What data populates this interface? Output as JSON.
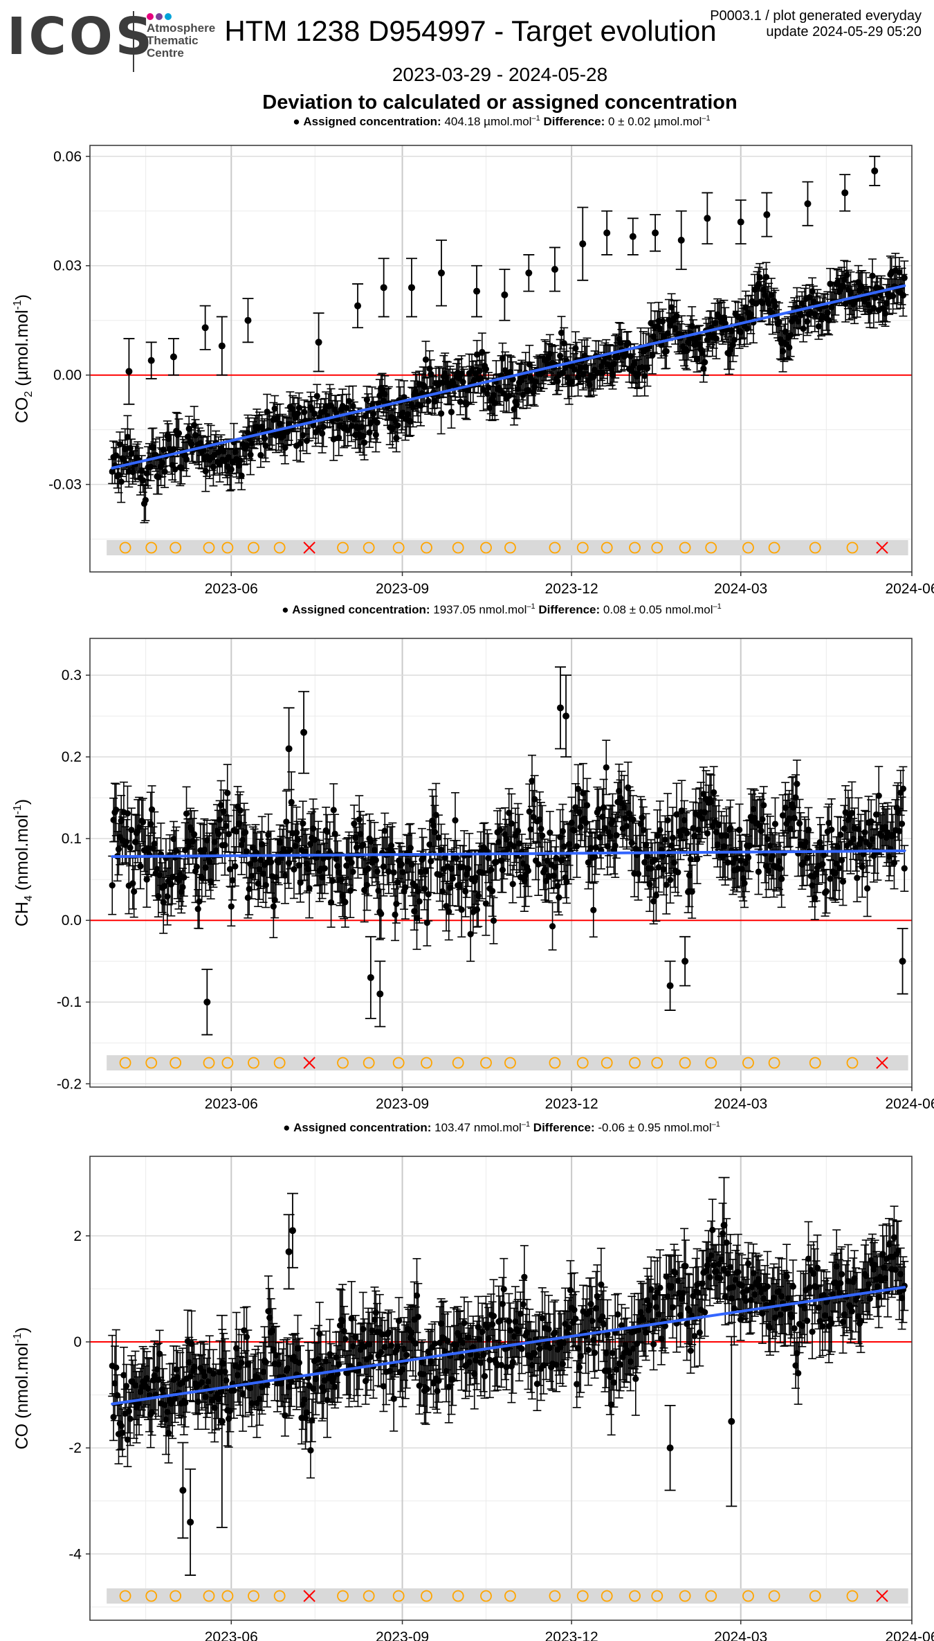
{
  "logo": {
    "word": "ICOS",
    "line1": "Atmosphere",
    "line2": "Thematic",
    "line3": "Centre",
    "dot_colors": [
      "#e6007e",
      "#7b3f98",
      "#00a3d9"
    ]
  },
  "header": {
    "title": "HTM 1238 D954997 - Target evolution",
    "note_line1": "P0003.1 / plot generated everyday",
    "note_line2": "update  2024-05-29 05:20",
    "date_range": "2023-03-29 - 2024-05-28",
    "subtitle": "Deviation to calculated or assigned concentration"
  },
  "colors": {
    "points": "#000000",
    "trend": "#3366ff",
    "zero_line": "#ff0000",
    "flag_band": "#d9d9d9",
    "flag_ok": "#ffa500",
    "flag_bad": "#ff0000"
  },
  "chart_data": [
    {
      "type": "scatter",
      "gas": "CO2",
      "ylabel_main": "CO",
      "ylabel_sub": "2",
      "ylabel_unit": " (µmol.mol",
      "ylabel_sup": "-1",
      "ylabel_close": ")",
      "legend": {
        "label": "Assigned concentration:",
        "value": "404.18 µmol.mol",
        "value_sup": "–1",
        "diff_label": "Difference:",
        "diff_value": "0 ± 0.02 µmol.mol",
        "diff_sup": "–1"
      },
      "ylim": [
        -0.054,
        0.063
      ],
      "yticks": [
        -0.03,
        0.0,
        0.03,
        0.06
      ],
      "ytick_labels": [
        "-0.03",
        "0.00",
        "0.03",
        "0.06"
      ],
      "trend": {
        "start": -0.0255,
        "end": 0.0245
      },
      "noise_sd": 0.0055,
      "error_bar": 0.0045,
      "outliers": [
        [
          "2023-04-07",
          0.001,
          0.009
        ],
        [
          "2023-04-19",
          0.004,
          0.005
        ],
        [
          "2023-05-01",
          0.005,
          0.005
        ],
        [
          "2023-05-18",
          0.013,
          0.006
        ],
        [
          "2023-05-27",
          0.008,
          0.008
        ],
        [
          "2023-06-10",
          0.015,
          0.006
        ],
        [
          "2023-07-18",
          0.009,
          0.008
        ],
        [
          "2023-08-08",
          0.019,
          0.006
        ],
        [
          "2023-08-22",
          0.024,
          0.008
        ],
        [
          "2023-09-06",
          0.024,
          0.008
        ],
        [
          "2023-09-22",
          0.028,
          0.009
        ],
        [
          "2023-10-11",
          0.023,
          0.007
        ],
        [
          "2023-10-26",
          0.022,
          0.007
        ],
        [
          "2023-11-08",
          0.028,
          0.005
        ],
        [
          "2023-11-22",
          0.029,
          0.006
        ],
        [
          "2023-12-07",
          0.036,
          0.01
        ],
        [
          "2023-12-20",
          0.039,
          0.006
        ],
        [
          "2024-01-03",
          0.038,
          0.005
        ],
        [
          "2024-01-15",
          0.039,
          0.005
        ],
        [
          "2024-01-29",
          0.037,
          0.008
        ],
        [
          "2024-02-12",
          0.043,
          0.007
        ],
        [
          "2024-03-01",
          0.042,
          0.006
        ],
        [
          "2024-03-15",
          0.044,
          0.006
        ],
        [
          "2024-04-06",
          0.047,
          0.006
        ],
        [
          "2024-04-26",
          0.05,
          0.005
        ],
        [
          "2024-05-12",
          0.056,
          0.004
        ]
      ],
      "flags": [
        [
          "2023-04-05",
          "ok"
        ],
        [
          "2023-04-19",
          "ok"
        ],
        [
          "2023-05-02",
          "ok"
        ],
        [
          "2023-05-20",
          "ok"
        ],
        [
          "2023-05-30",
          "ok"
        ],
        [
          "2023-06-13",
          "ok"
        ],
        [
          "2023-06-27",
          "ok"
        ],
        [
          "2023-07-13",
          "bad"
        ],
        [
          "2023-07-31",
          "ok"
        ],
        [
          "2023-08-14",
          "ok"
        ],
        [
          "2023-08-30",
          "ok"
        ],
        [
          "2023-09-14",
          "ok"
        ],
        [
          "2023-10-01",
          "ok"
        ],
        [
          "2023-10-16",
          "ok"
        ],
        [
          "2023-10-29",
          "ok"
        ],
        [
          "2023-11-22",
          "ok"
        ],
        [
          "2023-12-07",
          "ok"
        ],
        [
          "2023-12-20",
          "ok"
        ],
        [
          "2024-01-04",
          "ok"
        ],
        [
          "2024-01-16",
          "ok"
        ],
        [
          "2024-01-31",
          "ok"
        ],
        [
          "2024-02-14",
          "ok"
        ],
        [
          "2024-03-05",
          "ok"
        ],
        [
          "2024-03-19",
          "ok"
        ],
        [
          "2024-04-10",
          "ok"
        ],
        [
          "2024-04-30",
          "ok"
        ],
        [
          "2024-05-16",
          "bad"
        ]
      ]
    },
    {
      "type": "scatter",
      "gas": "CH4",
      "ylabel_main": "CH",
      "ylabel_sub": "4",
      "ylabel_unit": " (nmol.mol",
      "ylabel_sup": "-1",
      "ylabel_close": ")",
      "legend": {
        "label": "Assigned concentration:",
        "value": "1937.05 nmol.mol",
        "value_sup": "–1",
        "diff_label": "Difference:",
        "diff_value": "0.08 ± 0.05 nmol.mol",
        "diff_sup": "–1"
      },
      "ylim": [
        -0.204,
        0.345
      ],
      "yticks": [
        -0.2,
        -0.1,
        0.0,
        0.1,
        0.2,
        0.3
      ],
      "ytick_labels": [
        "-0.2",
        "-0.1",
        "0.0",
        "0.1",
        "0.2",
        "0.3"
      ],
      "trend": {
        "start": 0.078,
        "end": 0.085
      },
      "noise_sd": 0.045,
      "error_bar": 0.03,
      "outliers": [
        [
          "2023-07-10",
          0.23,
          0.05
        ],
        [
          "2023-07-02",
          0.21,
          0.05
        ],
        [
          "2023-08-20",
          -0.09,
          0.04
        ],
        [
          "2023-08-15",
          -0.07,
          0.05
        ],
        [
          "2023-11-25",
          0.26,
          0.05
        ],
        [
          "2023-11-28",
          0.25,
          0.05
        ],
        [
          "2024-01-23",
          -0.08,
          0.03
        ],
        [
          "2024-01-31",
          -0.05,
          0.03
        ],
        [
          "2023-05-19",
          -0.1,
          0.04
        ],
        [
          "2024-05-27",
          -0.05,
          0.04
        ]
      ],
      "flags": [
        [
          "2023-04-05",
          "ok"
        ],
        [
          "2023-04-19",
          "ok"
        ],
        [
          "2023-05-02",
          "ok"
        ],
        [
          "2023-05-20",
          "ok"
        ],
        [
          "2023-05-30",
          "ok"
        ],
        [
          "2023-06-13",
          "ok"
        ],
        [
          "2023-06-27",
          "ok"
        ],
        [
          "2023-07-13",
          "bad"
        ],
        [
          "2023-07-31",
          "ok"
        ],
        [
          "2023-08-14",
          "ok"
        ],
        [
          "2023-08-30",
          "ok"
        ],
        [
          "2023-09-14",
          "ok"
        ],
        [
          "2023-10-01",
          "ok"
        ],
        [
          "2023-10-16",
          "ok"
        ],
        [
          "2023-10-29",
          "ok"
        ],
        [
          "2023-11-22",
          "ok"
        ],
        [
          "2023-12-07",
          "ok"
        ],
        [
          "2023-12-20",
          "ok"
        ],
        [
          "2024-01-04",
          "ok"
        ],
        [
          "2024-01-16",
          "ok"
        ],
        [
          "2024-01-31",
          "ok"
        ],
        [
          "2024-02-14",
          "ok"
        ],
        [
          "2024-03-05",
          "ok"
        ],
        [
          "2024-03-19",
          "ok"
        ],
        [
          "2024-04-10",
          "ok"
        ],
        [
          "2024-04-30",
          "ok"
        ],
        [
          "2024-05-16",
          "bad"
        ]
      ]
    },
    {
      "type": "scatter",
      "gas": "CO",
      "ylabel_main": "CO",
      "ylabel_sub": "",
      "ylabel_unit": " (nmol.mol",
      "ylabel_sup": "-1",
      "ylabel_close": ")",
      "legend": {
        "label": "Assigned concentration:",
        "value": "103.47 nmol.mol",
        "value_sup": "–1",
        "diff_label": "Difference:",
        "diff_value": "-0.06 ± 0.95 nmol.mol",
        "diff_sup": "–1"
      },
      "ylim": [
        -5.25,
        3.5
      ],
      "yticks": [
        -4,
        -2,
        0,
        2
      ],
      "ytick_labels": [
        "-4",
        "-2",
        "0",
        "2"
      ],
      "trend": {
        "start": -1.17,
        "end": 1.03
      },
      "noise_sd": 0.62,
      "error_bar": 0.55,
      "outliers": [
        [
          "2023-07-04",
          2.1,
          0.7
        ],
        [
          "2023-07-02",
          1.7,
          0.7
        ],
        [
          "2023-05-10",
          -3.4,
          1.0
        ],
        [
          "2023-05-06",
          -2.8,
          0.9
        ],
        [
          "2024-02-21",
          2.2,
          0.9
        ],
        [
          "2024-01-23",
          -2.0,
          0.8
        ],
        [
          "2023-05-27",
          -1.5,
          2.0
        ],
        [
          "2024-02-25",
          -1.5,
          1.6
        ]
      ],
      "flags": [
        [
          "2023-04-05",
          "ok"
        ],
        [
          "2023-04-19",
          "ok"
        ],
        [
          "2023-05-02",
          "ok"
        ],
        [
          "2023-05-20",
          "ok"
        ],
        [
          "2023-05-30",
          "ok"
        ],
        [
          "2023-06-13",
          "ok"
        ],
        [
          "2023-06-27",
          "ok"
        ],
        [
          "2023-07-13",
          "bad"
        ],
        [
          "2023-07-31",
          "ok"
        ],
        [
          "2023-08-14",
          "ok"
        ],
        [
          "2023-08-30",
          "ok"
        ],
        [
          "2023-09-14",
          "ok"
        ],
        [
          "2023-10-01",
          "ok"
        ],
        [
          "2023-10-16",
          "ok"
        ],
        [
          "2023-10-29",
          "ok"
        ],
        [
          "2023-11-22",
          "ok"
        ],
        [
          "2023-12-07",
          "ok"
        ],
        [
          "2023-12-20",
          "ok"
        ],
        [
          "2024-01-04",
          "ok"
        ],
        [
          "2024-01-16",
          "ok"
        ],
        [
          "2024-01-31",
          "ok"
        ],
        [
          "2024-02-14",
          "ok"
        ],
        [
          "2024-03-05",
          "ok"
        ],
        [
          "2024-03-19",
          "ok"
        ],
        [
          "2024-04-10",
          "ok"
        ],
        [
          "2024-04-30",
          "ok"
        ],
        [
          "2024-05-16",
          "bad"
        ]
      ]
    }
  ],
  "x_axis": {
    "start": "2023-03-29",
    "end": "2024-05-28",
    "range_end": "2024-06-01",
    "ticks": [
      "2023-06-01",
      "2023-09-01",
      "2023-12-01",
      "2024-03-01",
      "2024-06-01"
    ],
    "tick_labels": [
      "2023-06",
      "2023-09",
      "2023-12",
      "2024-03",
      "2024-06"
    ],
    "minor_ticks": [
      "2023-04-16",
      "2023-07-16",
      "2023-10-16",
      "2024-01-16",
      "2024-04-16"
    ]
  }
}
